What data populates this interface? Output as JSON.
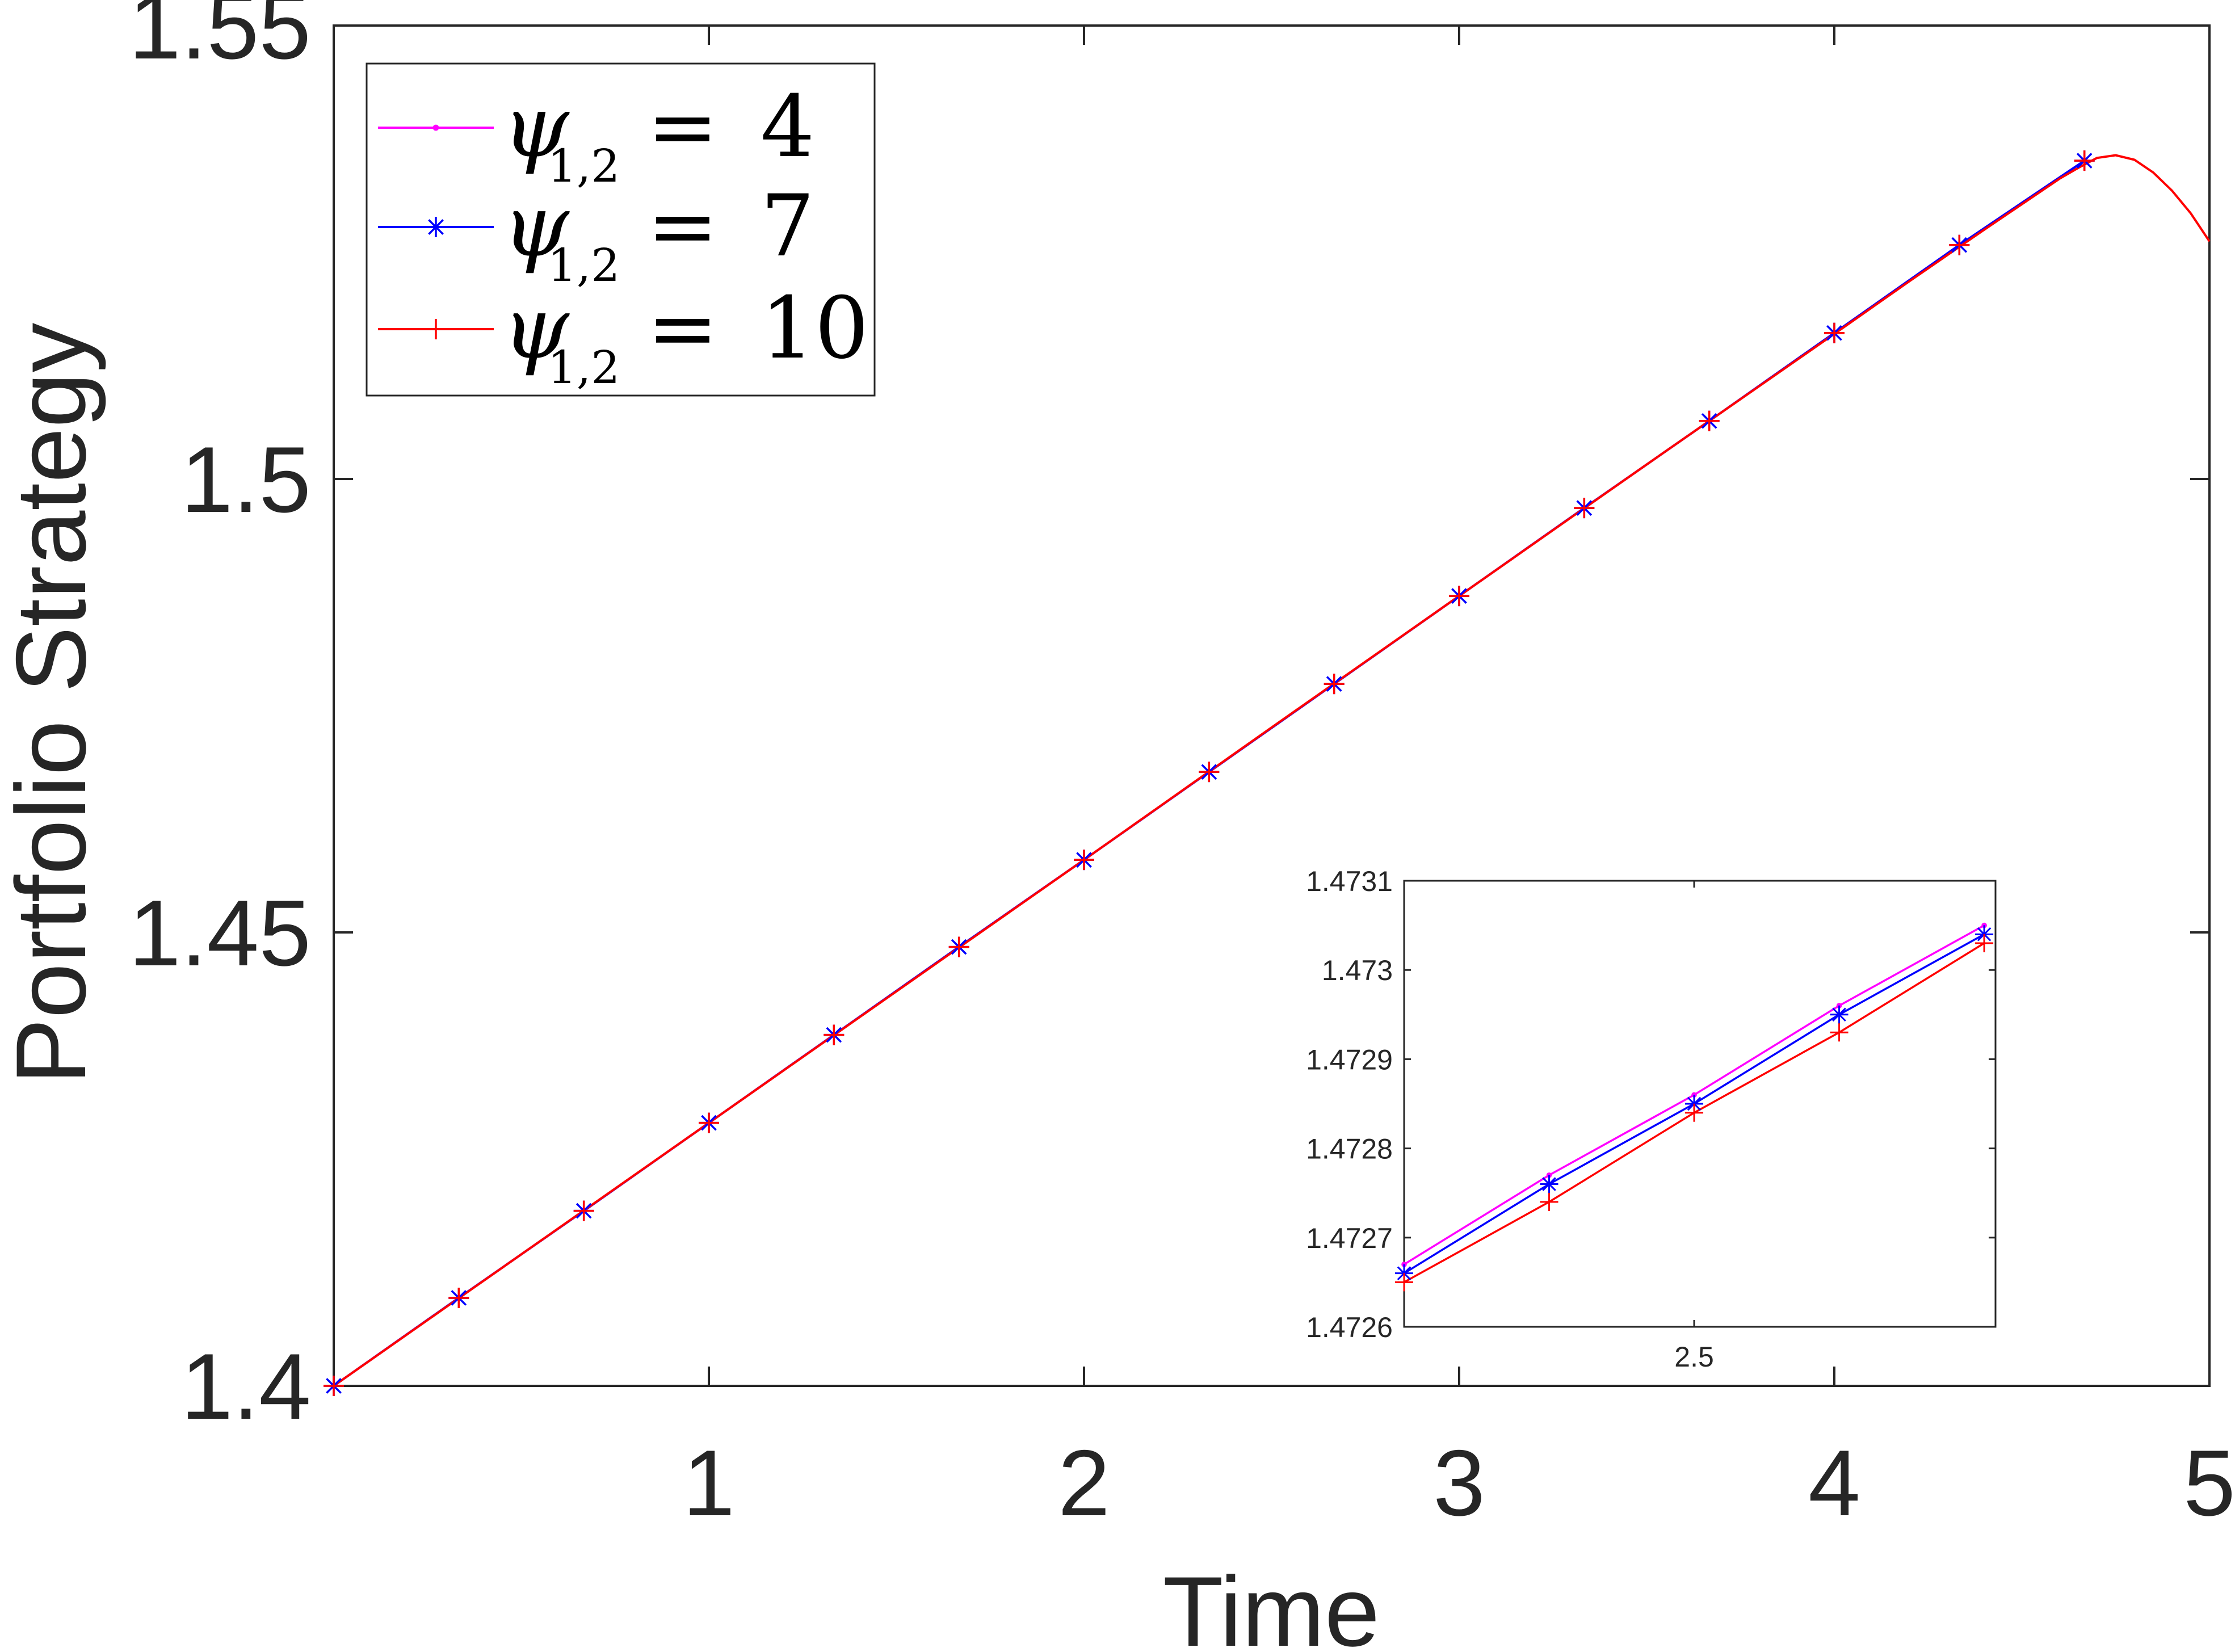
{
  "chart_data": [
    {
      "type": "line",
      "xlabel": "Time",
      "ylabel": "Portfolio Strategy",
      "xlim": [
        0,
        5
      ],
      "ylim": [
        1.4,
        1.55
      ],
      "xticks": [
        1,
        2,
        3,
        4,
        5
      ],
      "xtick_labels": [
        "1",
        "2",
        "3",
        "4",
        "5"
      ],
      "yticks": [
        1.4,
        1.45,
        1.5,
        1.55
      ],
      "ytick_labels": [
        "1.4",
        "1.45",
        "1.5",
        "1.55"
      ],
      "grid": false,
      "legend_position": "top-left",
      "x": [
        0,
        0.3333,
        0.6667,
        1.0,
        1.3333,
        1.6667,
        2.0,
        2.3333,
        2.6667,
        3.0,
        3.3333,
        3.6667,
        4.0,
        4.3333,
        4.6667
      ],
      "curve_x": [
        0,
        0.5,
        1.0,
        1.5,
        2.0,
        2.5,
        3.0,
        3.5,
        4.0,
        4.2,
        4.4,
        4.5,
        4.6,
        4.65,
        4.7,
        4.75,
        4.8,
        4.85,
        4.9,
        4.95,
        5.0
      ],
      "curve_y": [
        1.4,
        1.4145,
        1.429,
        1.4435,
        1.458,
        1.4726,
        1.4871,
        1.5016,
        1.516,
        1.5218,
        1.5275,
        1.5303,
        1.5331,
        1.5343,
        1.5354,
        1.5357,
        1.5352,
        1.5338,
        1.5318,
        1.5293,
        1.5262
      ],
      "series": [
        {
          "name": "4",
          "color": "#ff00ff",
          "marker": "point",
          "values": [
            1.4,
            1.4097,
            1.4193,
            1.429,
            1.4387,
            1.4484,
            1.458,
            1.4677,
            1.4774,
            1.4871,
            1.4968,
            1.5064,
            1.5161,
            1.5258,
            1.5351
          ]
        },
        {
          "name": "7",
          "color": "#0000ff",
          "marker": "asterisk",
          "values": [
            1.4,
            1.4097,
            1.4193,
            1.429,
            1.4387,
            1.4484,
            1.458,
            1.4677,
            1.4774,
            1.4871,
            1.4968,
            1.5064,
            1.5161,
            1.5258,
            1.5351
          ]
        },
        {
          "name": "10",
          "color": "#ff0000",
          "marker": "plus",
          "values": [
            1.4,
            1.4097,
            1.4193,
            1.429,
            1.4387,
            1.4484,
            1.458,
            1.4677,
            1.4774,
            1.4871,
            1.4968,
            1.5064,
            1.5161,
            1.5258,
            1.5351
          ]
        }
      ]
    },
    {
      "type": "line",
      "role": "inset",
      "xlim": [
        2.423,
        2.58
      ],
      "ylim": [
        1.4726,
        1.4731
      ],
      "xticks": [
        2.5
      ],
      "xtick_labels": [
        "2.5"
      ],
      "yticks": [
        1.4726,
        1.4727,
        1.4728,
        1.4729,
        1.473,
        1.4731
      ],
      "ytick_labels": [
        "1.4726",
        "1.4727",
        "1.4728",
        "1.4729",
        "1.473",
        "1.4731"
      ],
      "x": [
        2.423,
        2.4615,
        2.5,
        2.5385,
        2.577
      ],
      "series": [
        {
          "name": "4",
          "color": "#ff00ff",
          "marker": "point",
          "values": [
            1.47267,
            1.47277,
            1.47286,
            1.47296,
            1.47305
          ]
        },
        {
          "name": "7",
          "color": "#0000ff",
          "marker": "asterisk",
          "values": [
            1.47266,
            1.47276,
            1.47285,
            1.47295,
            1.47304
          ]
        },
        {
          "name": "10",
          "color": "#ff0000",
          "marker": "plus",
          "values": [
            1.47265,
            1.47274,
            1.47284,
            1.47293,
            1.47303
          ]
        }
      ]
    }
  ],
  "legend": {
    "symbol": "ψ",
    "subscript": "1,2",
    "equals": "=",
    "entries": [
      "4",
      "7",
      "10"
    ]
  }
}
